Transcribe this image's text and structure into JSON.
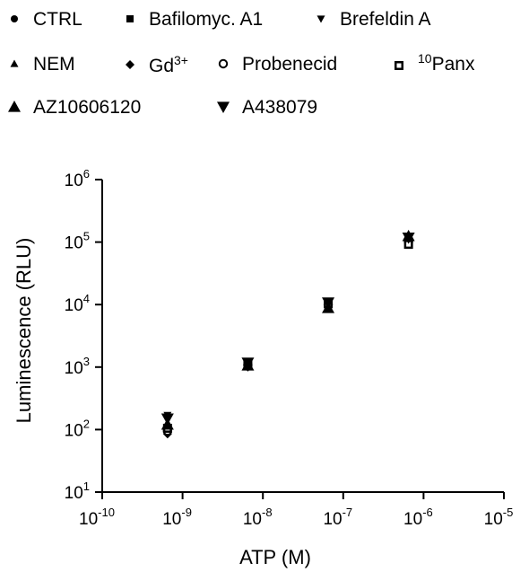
{
  "chart_data": {
    "type": "scatter",
    "title": "",
    "xlabel": "ATP (M)",
    "ylabel": "Luminescence (RLU)",
    "x_scale": "log",
    "y_scale": "log",
    "xlim": [
      1e-10,
      1e-05
    ],
    "ylim": [
      10,
      1000000
    ],
    "x_ticks": [
      {
        "value": 1e-10,
        "base": "10",
        "exp": "-10"
      },
      {
        "value": 1e-09,
        "base": "10",
        "exp": "-9"
      },
      {
        "value": 1e-08,
        "base": "10",
        "exp": "-8"
      },
      {
        "value": 1e-07,
        "base": "10",
        "exp": "-7"
      },
      {
        "value": 1e-06,
        "base": "10",
        "exp": "-6"
      },
      {
        "value": 1e-05,
        "base": "10",
        "exp": "-5"
      }
    ],
    "y_ticks": [
      {
        "value": 10,
        "base": "10",
        "exp": "1"
      },
      {
        "value": 100,
        "base": "10",
        "exp": "2"
      },
      {
        "value": 1000,
        "base": "10",
        "exp": "3"
      },
      {
        "value": 10000,
        "base": "10",
        "exp": "4"
      },
      {
        "value": 100000,
        "base": "10",
        "exp": "5"
      },
      {
        "value": 1000000,
        "base": "10",
        "exp": "6"
      }
    ],
    "grid": false,
    "legend_position": "top",
    "x": [
      6.5e-10,
      6.5e-09,
      6.5e-08,
      6.5e-07
    ],
    "series": [
      {
        "name": "CTRL",
        "marker": "circle-small",
        "values": [
          110,
          1150,
          10500,
          110000
        ]
      },
      {
        "name": "Bafilomyc. A1",
        "marker": "square-small",
        "values": [
          100,
          1100,
          10200,
          100000
        ]
      },
      {
        "name": "Brefeldin A",
        "marker": "triangle-down-small",
        "values": [
          170,
          1200,
          11000,
          120000
        ]
      },
      {
        "name": "NEM",
        "marker": "triangle-up-small",
        "values": [
          130,
          1050,
          9000,
          115000
        ]
      },
      {
        "name": "Gd",
        "name_sup": "3+",
        "marker": "diamond-small",
        "values": [
          85,
          1000,
          9800,
          105000
        ]
      },
      {
        "name": "Probenecid",
        "marker": "circle-open",
        "values": [
          95,
          1080,
          10000,
          102000
        ]
      },
      {
        "name": "Panx",
        "name_sup_pre": "10",
        "marker": "square-open",
        "values": [
          105,
          1120,
          10300,
          92000
        ]
      },
      {
        "name": "AZ10606120",
        "marker": "triangle-up",
        "values": [
          120,
          1060,
          8800,
          125000
        ]
      },
      {
        "name": "A438079",
        "marker": "triangle-down",
        "values": [
          150,
          1180,
          10800,
          118000
        ]
      }
    ]
  }
}
